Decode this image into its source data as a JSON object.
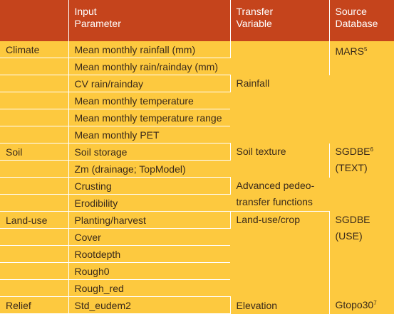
{
  "header": {
    "col1": "",
    "col2_line1": "Input",
    "col2_line2": "Parameter",
    "col3_line1": "Transfer",
    "col3_line2": "Variable",
    "col4_line1": "Source",
    "col4_line2": "Database"
  },
  "climate": {
    "category": "Climate",
    "params": [
      "Mean monthly rainfall (mm)",
      "Mean monthly rain/rainday (mm)",
      "CV rain/rainday",
      "Mean monthly temperature",
      "Mean monthly temperature range",
      "Mean monthly PET"
    ],
    "variable": "Rainfall",
    "source": "MARS",
    "source_sup": "5"
  },
  "soil": {
    "category": "Soil",
    "params": [
      "Soil storage",
      "Zm (drainage; TopModel)",
      "Crusting",
      "Erodibility"
    ],
    "variable1": "Soil texture",
    "variable2_line1": "Advanced pedeo-",
    "variable2_line2": "transfer functions",
    "source_line1": "SGDBE",
    "source_sup": "6",
    "source_line2": "(TEXT)"
  },
  "landuse": {
    "category": "Land-use",
    "params": [
      "Planting/harvest",
      "Cover",
      "Rootdepth",
      "Rough0",
      "Rough_red"
    ],
    "variable": "Land-use/crop",
    "source_line1": "SGDBE",
    "source_line2": "(USE)"
  },
  "relief": {
    "category": "Relief",
    "params": [
      "Std_eudem2"
    ],
    "variable": "Elevation",
    "source": "Gtopo30",
    "source_sup": "7"
  }
}
